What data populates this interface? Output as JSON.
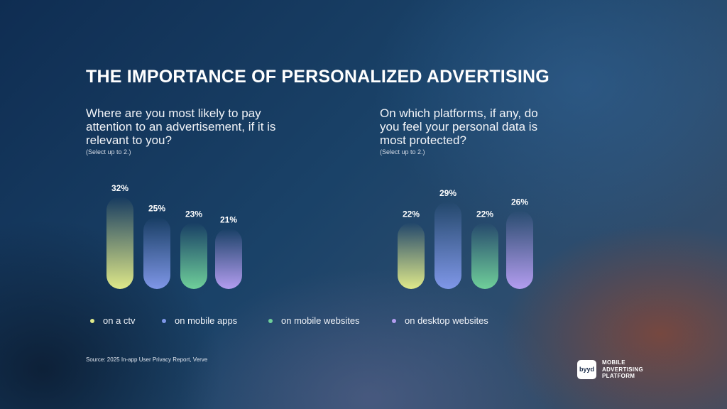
{
  "title": "THE IMPORTANCE OF PERSONALIZED ADVERTISING",
  "left_panel": {
    "question": "Where are you most likely to pay attention to an advertisement, if it is relevant to you?",
    "note": "(Select up to 2.)"
  },
  "right_panel": {
    "question": "On which platforms, if any, do you feel your personal data is most protected?",
    "note": "(Select up to 2.)"
  },
  "legend": [
    {
      "label": "on a ctv",
      "color": "#dfe98a"
    },
    {
      "label": "on mobile apps",
      "color": "#7f97e8"
    },
    {
      "label": "on mobile websites",
      "color": "#6fcf9a"
    },
    {
      "label": "on desktop websites",
      "color": "#b39df0"
    }
  ],
  "source": "Source: 2025 In-app User Privacy Report, Verve",
  "brand": {
    "logo_text": "byyd",
    "line1": "MOBILE",
    "line2": "ADVERTISING",
    "line3": "PLATFORM"
  },
  "chart_data": [
    {
      "type": "bar",
      "categories": [
        "on a ctv",
        "on mobile apps",
        "on mobile websites",
        "on desktop websites"
      ],
      "values": [
        32,
        25,
        23,
        21
      ],
      "labels": [
        "32%",
        "25%",
        "23%",
        "21%"
      ],
      "colors": [
        "#dfe98a",
        "#7f97e8",
        "#6fcf9a",
        "#b39df0"
      ],
      "ylim": [
        0,
        32
      ]
    },
    {
      "type": "bar",
      "categories": [
        "on a ctv",
        "on mobile apps",
        "on mobile websites",
        "on desktop websites"
      ],
      "values": [
        22,
        29,
        22,
        26
      ],
      "labels": [
        "22%",
        "29%",
        "22%",
        "26%"
      ],
      "colors": [
        "#dfe98a",
        "#7f97e8",
        "#6fcf9a",
        "#b39df0"
      ],
      "ylim": [
        0,
        29
      ]
    }
  ]
}
